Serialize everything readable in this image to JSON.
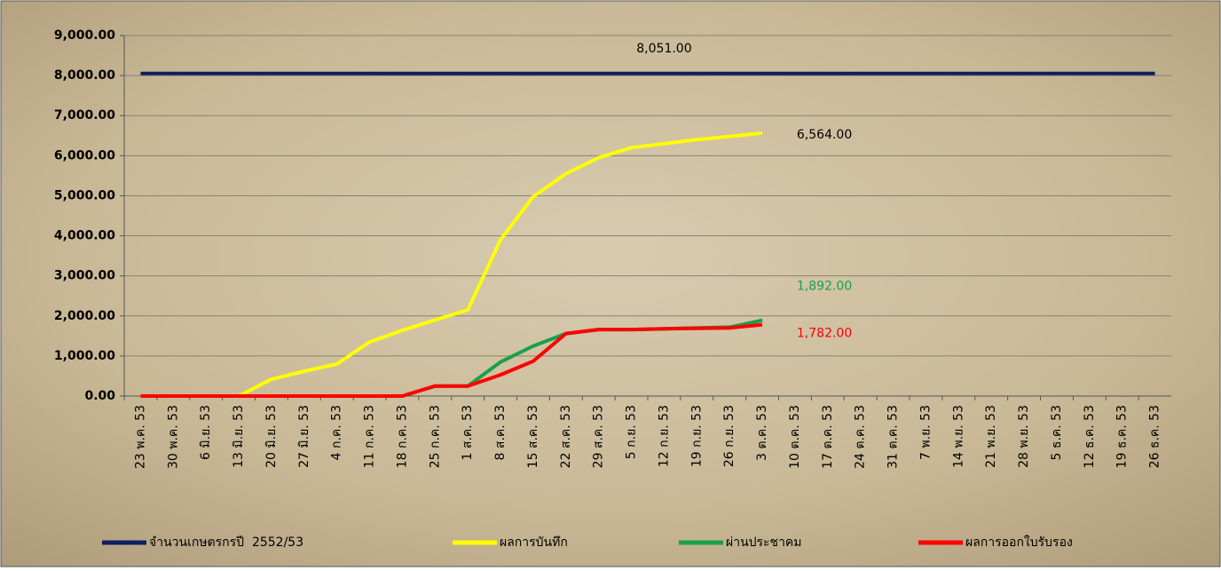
{
  "chart_data": {
    "type": "line",
    "categories": [
      "23 พ.ค. 53",
      "30 พ.ค. 53",
      "6 มิ.ย. 53",
      "13 มิ.ย. 53",
      "20 มิ.ย. 53",
      "27 มิ.ย. 53",
      "4 ก.ค. 53",
      "11 ก.ค. 53",
      "18 ก.ค. 53",
      "25 ก.ค. 53",
      "1 ส.ค. 53",
      "8 ส.ค. 53",
      "15 ส.ค. 53",
      "22 ส.ค. 53",
      "29 ส.ค. 53",
      "5 ก.ย. 53",
      "12 ก.ย. 53",
      "19 ก.ย. 53",
      "26 ก.ย. 53",
      "3 ต.ค. 53",
      "10 ต.ค. 53",
      "17 ต.ค. 53",
      "24 ต.ค. 53",
      "31 ต.ค. 53",
      "7 พ.ย. 53",
      "14 พ.ย. 53",
      "21 พ.ย. 53",
      "28 พ.ย. 53",
      "5 ธ.ค. 53",
      "12 ธ.ค. 53",
      "19 ธ.ค. 53",
      "26 ธ.ค. 53"
    ],
    "series": [
      {
        "name": "จำนวนเกษตรกรปี  2552/53",
        "color": "#0d2060",
        "values": [
          8051,
          8051,
          8051,
          8051,
          8051,
          8051,
          8051,
          8051,
          8051,
          8051,
          8051,
          8051,
          8051,
          8051,
          8051,
          8051,
          8051,
          8051,
          8051,
          8051,
          8051,
          8051,
          8051,
          8051,
          8051,
          8051,
          8051,
          8051,
          8051,
          8051,
          8051,
          8051
        ],
        "value_labels": [
          null,
          null,
          null,
          null,
          null,
          null,
          null,
          null,
          null,
          null,
          null,
          null,
          null,
          null,
          null,
          null,
          "8,051.00",
          null,
          null,
          null,
          null,
          null,
          null,
          null,
          null,
          null,
          null,
          null,
          null,
          null,
          null,
          null
        ]
      },
      {
        "name": "ผลการบันทึก",
        "color": "#ffff00",
        "values": [
          0,
          0,
          0,
          0,
          420,
          620,
          800,
          1350,
          1640,
          1900,
          2150,
          3900,
          4980,
          5550,
          5950,
          6200,
          6300,
          6400,
          6480,
          6564,
          null,
          null,
          null,
          null,
          null,
          null,
          null,
          null,
          null,
          null,
          null,
          null
        ],
        "value_labels": [
          null,
          null,
          null,
          null,
          null,
          null,
          null,
          null,
          null,
          null,
          null,
          null,
          null,
          null,
          null,
          null,
          null,
          null,
          null,
          "6,564.00",
          null,
          null,
          null,
          null,
          null,
          null,
          null,
          null,
          null,
          null,
          null,
          null
        ]
      },
      {
        "name": "ผ่านประชาคม",
        "color": "#1aa04a",
        "values": [
          0,
          0,
          0,
          0,
          0,
          0,
          0,
          0,
          0,
          250,
          250,
          850,
          1250,
          1560,
          1660,
          1660,
          1680,
          1700,
          1720,
          1892,
          null,
          null,
          null,
          null,
          null,
          null,
          null,
          null,
          null,
          null,
          null,
          null
        ],
        "value_labels": [
          null,
          null,
          null,
          null,
          null,
          null,
          null,
          null,
          null,
          null,
          null,
          null,
          null,
          null,
          null,
          null,
          null,
          null,
          null,
          "1,892.00",
          null,
          null,
          null,
          null,
          null,
          null,
          null,
          null,
          null,
          null,
          null,
          null
        ]
      },
      {
        "name": "ผลการออกใบรับรอง",
        "color": "#ff0000",
        "values": [
          0,
          0,
          0,
          0,
          0,
          0,
          0,
          0,
          0,
          250,
          250,
          530,
          870,
          1560,
          1660,
          1660,
          1680,
          1690,
          1700,
          1782,
          null,
          null,
          null,
          null,
          null,
          null,
          null,
          null,
          null,
          null,
          null,
          null
        ],
        "value_labels": [
          null,
          null,
          null,
          null,
          null,
          null,
          null,
          null,
          null,
          null,
          null,
          null,
          null,
          null,
          null,
          null,
          null,
          null,
          null,
          "1,782.00",
          null,
          null,
          null,
          null,
          null,
          null,
          null,
          null,
          null,
          null,
          null,
          null
        ]
      }
    ],
    "ylim": [
      0,
      9000
    ],
    "yticks": [
      {
        "value": 0,
        "label": "0.00"
      },
      {
        "value": 1000,
        "label": "1,000.00"
      },
      {
        "value": 2000,
        "label": "2,000.00"
      },
      {
        "value": 3000,
        "label": "3,000.00"
      },
      {
        "value": 4000,
        "label": "4,000.00"
      },
      {
        "value": 5000,
        "label": "5,000.00"
      },
      {
        "value": 6000,
        "label": "6,000.00"
      },
      {
        "value": 7000,
        "label": "7,000.00"
      },
      {
        "value": 8000,
        "label": "8,000.00"
      },
      {
        "value": 9000,
        "label": "9,000.00"
      }
    ],
    "grid": true,
    "legend": "bottom"
  }
}
